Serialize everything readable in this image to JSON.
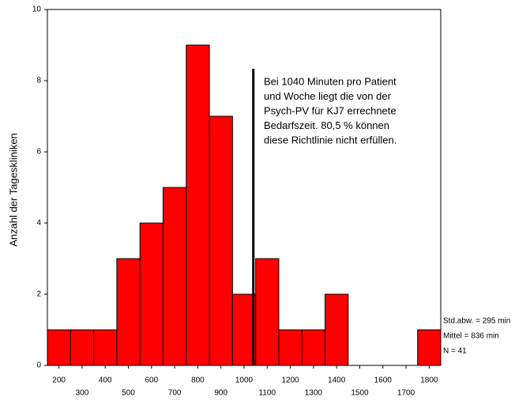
{
  "chart_data": {
    "type": "histogram",
    "y_label": "Anzahl der Tageskliniken",
    "bins": [
      150,
      250,
      350,
      450,
      550,
      650,
      750,
      850,
      950,
      1050,
      1150,
      1250,
      1350,
      1450,
      1550,
      1650,
      1750,
      1850
    ],
    "values": [
      1,
      1,
      1,
      3,
      4,
      5,
      9,
      7,
      2,
      3,
      1,
      1,
      2,
      0,
      0,
      0,
      1
    ],
    "color": "#ff0000",
    "xlim": [
      150,
      1850
    ],
    "xticks": [
      200,
      300,
      400,
      500,
      600,
      700,
      800,
      900,
      1000,
      1100,
      1200,
      1300,
      1400,
      1500,
      1600,
      1700,
      1800
    ],
    "ylim": [
      0,
      10
    ],
    "yticks": [
      0,
      2,
      4,
      6,
      8,
      10
    ],
    "reference_line": 1040,
    "annotation_lines": [
      "Bei 1040 Minuten pro Patient",
      "und Woche liegt die von der",
      "Psych-PV für KJ7 errechnete",
      "Bedarfszeit. 80,5 % können",
      "diese Richtlinie nicht erfüllen."
    ],
    "stats": [
      "Std.abw. = 295 min",
      "Mittel = 836 min",
      "N = 41"
    ]
  }
}
